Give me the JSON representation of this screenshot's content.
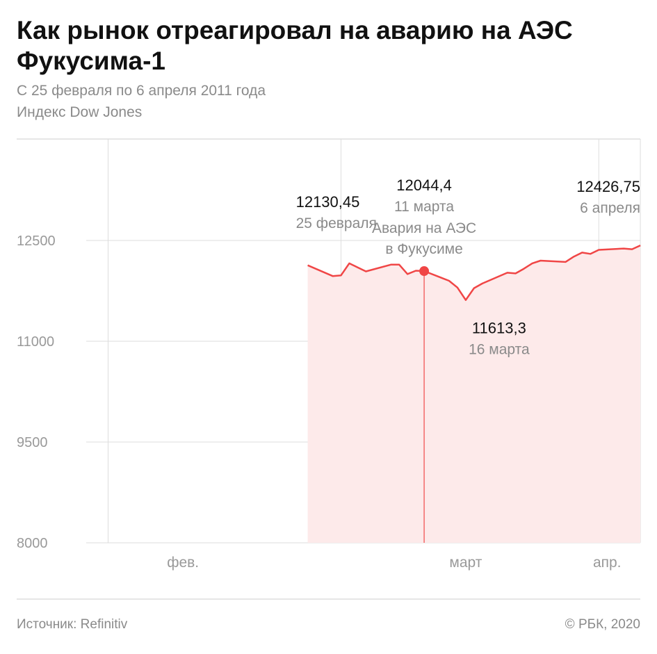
{
  "header": {
    "title": "Как рынок отреагировал на аварию на АЭС Фукусима-1",
    "subtitle": "С 25 февраля по 6 апреля 2011 года",
    "index_name": "Индекс Dow Jones"
  },
  "footer": {
    "source": "Источник: Refinitiv",
    "copyright": "© РБК, 2020"
  },
  "colors": {
    "line": "#f04646",
    "area": "#fdeaea",
    "grid": "#dddddd",
    "axis_text": "#999999",
    "value_text": "#111111",
    "label_text": "#8a8a8a"
  },
  "chart_data": {
    "type": "area",
    "title": "Как рынок отреагировал на аварию на АЭС Фукусима-1",
    "subtitle": "С 25 февраля по 6 апреля 2011 года",
    "ylabel": "",
    "xlabel": "",
    "ylim": [
      8000,
      12800
    ],
    "yticks": [
      12500,
      11000,
      9500,
      8000
    ],
    "grid": true,
    "x": [
      "2011-02-25",
      "2011-02-28",
      "2011-03-01",
      "2011-03-02",
      "2011-03-03",
      "2011-03-04",
      "2011-03-07",
      "2011-03-08",
      "2011-03-09",
      "2011-03-10",
      "2011-03-11",
      "2011-03-14",
      "2011-03-15",
      "2011-03-16",
      "2011-03-17",
      "2011-03-18",
      "2011-03-21",
      "2011-03-22",
      "2011-03-23",
      "2011-03-24",
      "2011-03-25",
      "2011-03-28",
      "2011-03-29",
      "2011-03-30",
      "2011-03-31",
      "2011-04-01",
      "2011-04-04",
      "2011-04-05",
      "2011-04-06"
    ],
    "x_tick_labels": [
      {
        "label": "фев.",
        "date": "2011-02-01"
      },
      {
        "label": "март",
        "date": "2011-03-01"
      },
      {
        "label": "апр.",
        "date": "2011-04-01"
      }
    ],
    "series": [
      {
        "values": [
          12130.45,
          11970,
          11980,
          12160,
          12100,
          12040,
          12140,
          12140,
          12000,
          12050,
          12044.4,
          11900,
          11800,
          11613.3,
          11790,
          11860,
          12020,
          12010,
          12080,
          12160,
          12200,
          12180,
          12260,
          12320,
          12300,
          12360,
          12380,
          12370,
          12426.75
        ]
      }
    ],
    "annotations": [
      {
        "x": "2011-02-25",
        "value": "12130,45",
        "label": "25 февраля"
      },
      {
        "x": "2011-03-11",
        "value": "12044,4",
        "label": "11 марта",
        "note_line1": "Авария на АЭС",
        "note_line2": "в Фукусиме",
        "marker": true
      },
      {
        "x": "2011-03-16",
        "value": "11613,3",
        "label": "16 марта"
      },
      {
        "x": "2011-04-06",
        "value": "12426,75",
        "label": "6 апреля"
      }
    ]
  }
}
